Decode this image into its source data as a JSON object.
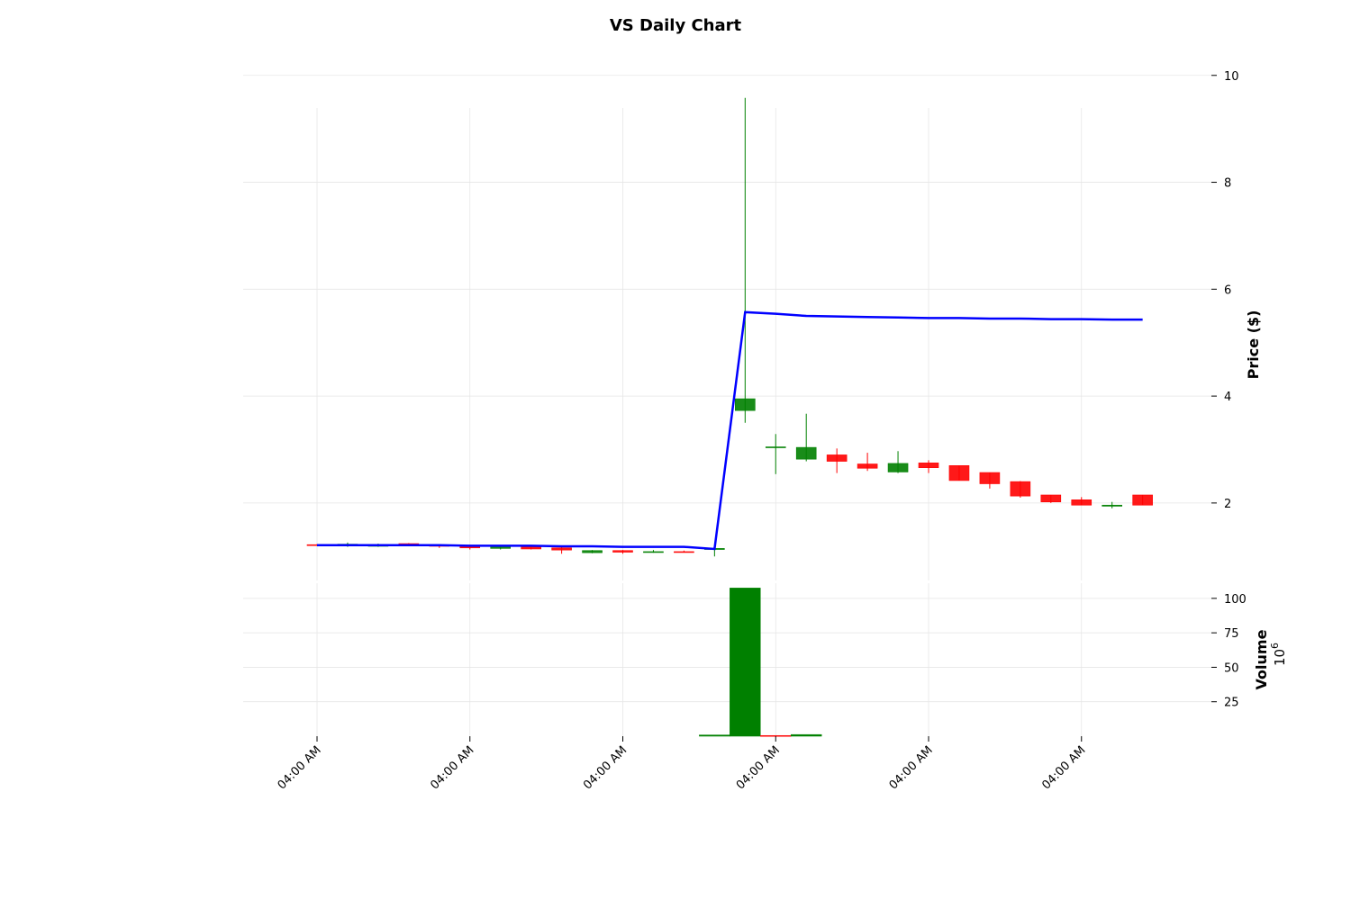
{
  "chart_data": {
    "type": "candlestick",
    "title": "VS Daily Chart",
    "price_panel": {
      "ylabel": "Price ($)",
      "ylim": [
        0.55,
        10.4
      ],
      "yticks": [
        2,
        4,
        6,
        8,
        10
      ],
      "grid": true,
      "candles": [
        {
          "open": 1.22,
          "high": 1.23,
          "low": 1.21,
          "close": 1.21
        },
        {
          "open": 1.2,
          "high": 1.26,
          "low": 1.18,
          "close": 1.23
        },
        {
          "open": 1.19,
          "high": 1.24,
          "low": 1.18,
          "close": 1.22
        },
        {
          "open": 1.24,
          "high": 1.25,
          "low": 1.21,
          "close": 1.22
        },
        {
          "open": 1.21,
          "high": 1.23,
          "low": 1.16,
          "close": 1.19
        },
        {
          "open": 1.2,
          "high": 1.22,
          "low": 1.13,
          "close": 1.16
        },
        {
          "open": 1.15,
          "high": 1.21,
          "low": 1.13,
          "close": 1.19
        },
        {
          "open": 1.18,
          "high": 1.2,
          "low": 1.13,
          "close": 1.14
        },
        {
          "open": 1.16,
          "high": 1.18,
          "low": 1.05,
          "close": 1.12
        },
        {
          "open": 1.07,
          "high": 1.12,
          "low": 1.06,
          "close": 1.11
        },
        {
          "open": 1.11,
          "high": 1.12,
          "low": 1.05,
          "close": 1.08
        },
        {
          "open": 1.08,
          "high": 1.12,
          "low": 1.07,
          "close": 1.09
        },
        {
          "open": 1.09,
          "high": 1.11,
          "low": 1.08,
          "close": 1.08
        },
        {
          "open": 1.13,
          "high": 1.16,
          "low": 1.0,
          "close": 1.15
        },
        {
          "open": 3.73,
          "high": 9.58,
          "low": 3.5,
          "close": 3.95
        },
        {
          "open": 3.05,
          "high": 3.29,
          "low": 2.54,
          "close": 3.05
        },
        {
          "open": 2.82,
          "high": 3.67,
          "low": 2.78,
          "close": 3.04
        },
        {
          "open": 2.9,
          "high": 3.02,
          "low": 2.56,
          "close": 2.78
        },
        {
          "open": 2.73,
          "high": 2.94,
          "low": 2.6,
          "close": 2.65
        },
        {
          "open": 2.58,
          "high": 2.97,
          "low": 2.56,
          "close": 2.74
        },
        {
          "open": 2.75,
          "high": 2.8,
          "low": 2.56,
          "close": 2.66
        },
        {
          "open": 2.7,
          "high": 2.7,
          "low": 2.42,
          "close": 2.42
        },
        {
          "open": 2.57,
          "high": 2.57,
          "low": 2.27,
          "close": 2.36
        },
        {
          "open": 2.4,
          "high": 2.41,
          "low": 2.1,
          "close": 2.13
        },
        {
          "open": 2.15,
          "high": 2.15,
          "low": 2.0,
          "close": 2.02
        },
        {
          "open": 2.06,
          "high": 2.11,
          "low": 1.96,
          "close": 1.96
        },
        {
          "open": 1.94,
          "high": 2.02,
          "low": 1.9,
          "close": 1.96
        },
        {
          "open": 2.15,
          "high": 2.15,
          "low": 1.96,
          "close": 1.96
        }
      ],
      "moving_average": {
        "color": "#0000ff",
        "values": [
          1.21,
          1.21,
          1.21,
          1.21,
          1.21,
          1.2,
          1.2,
          1.2,
          1.19,
          1.19,
          1.18,
          1.18,
          1.18,
          1.14,
          5.57,
          5.54,
          5.5,
          5.49,
          5.48,
          5.47,
          5.46,
          5.46,
          5.45,
          5.45,
          5.44,
          5.44,
          5.43,
          5.43
        ]
      },
      "up_color": "#008000",
      "down_color": "#ff0000"
    },
    "volume_panel": {
      "ylabel": "Volume",
      "yscale_label": "10",
      "yscale_exp": "6",
      "ylim": [
        0,
        111
      ],
      "yticks": [
        25,
        50,
        75,
        100
      ],
      "bars": [
        {
          "value": 0.9,
          "direction": "up"
        },
        {
          "value": 107.5,
          "direction": "up"
        },
        {
          "value": 0.5,
          "direction": "down"
        },
        {
          "value": 1.2,
          "direction": "up"
        }
      ]
    },
    "x_tick_labels": [
      "04:00 AM",
      "04:00 AM",
      "04:00 AM",
      "04:00 AM",
      "04:00 AM",
      "04:00 AM"
    ],
    "grid": true
  }
}
